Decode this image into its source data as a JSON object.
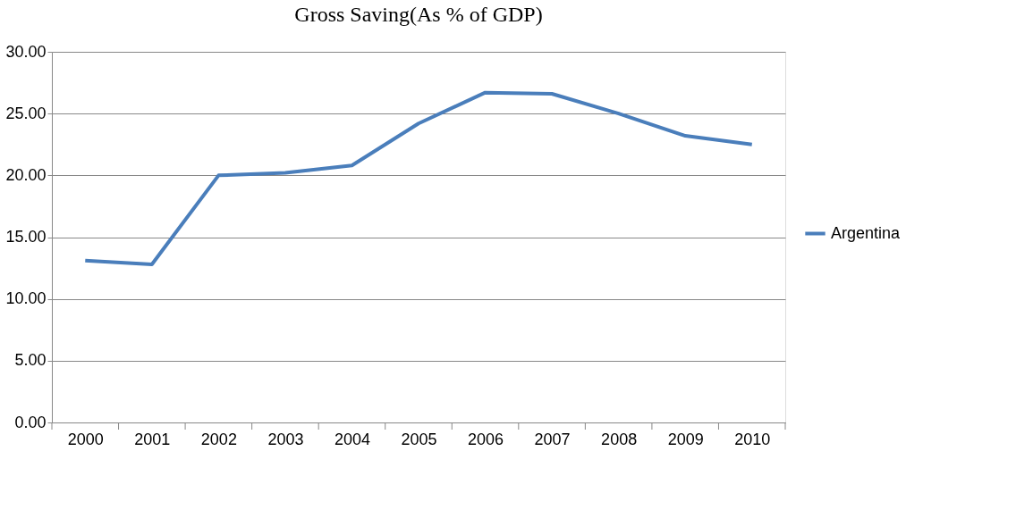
{
  "chart_data": {
    "type": "line",
    "title": "Gross Saving(As % of GDP)",
    "categories": [
      "2000",
      "2001",
      "2002",
      "2003",
      "2004",
      "2005",
      "2006",
      "2007",
      "2008",
      "2009",
      "2010"
    ],
    "series": [
      {
        "name": "Argentina",
        "color": "#4a7ebb",
        "values": [
          13.1,
          12.8,
          20.0,
          20.2,
          20.8,
          24.2,
          26.7,
          26.6,
          25.0,
          23.2,
          22.5
        ]
      }
    ],
    "ylim": [
      0,
      30
    ],
    "yticks": [
      {
        "value": 0,
        "label": "0.00"
      },
      {
        "value": 5,
        "label": "5.00"
      },
      {
        "value": 10,
        "label": "10.00"
      },
      {
        "value": 15,
        "label": "15.00"
      },
      {
        "value": 20,
        "label": "20.00"
      },
      {
        "value": 25,
        "label": "25.00"
      },
      {
        "value": 30,
        "label": "30.00"
      }
    ],
    "grid": "y",
    "legend": "right",
    "marker": "none",
    "line_style": "solid"
  }
}
